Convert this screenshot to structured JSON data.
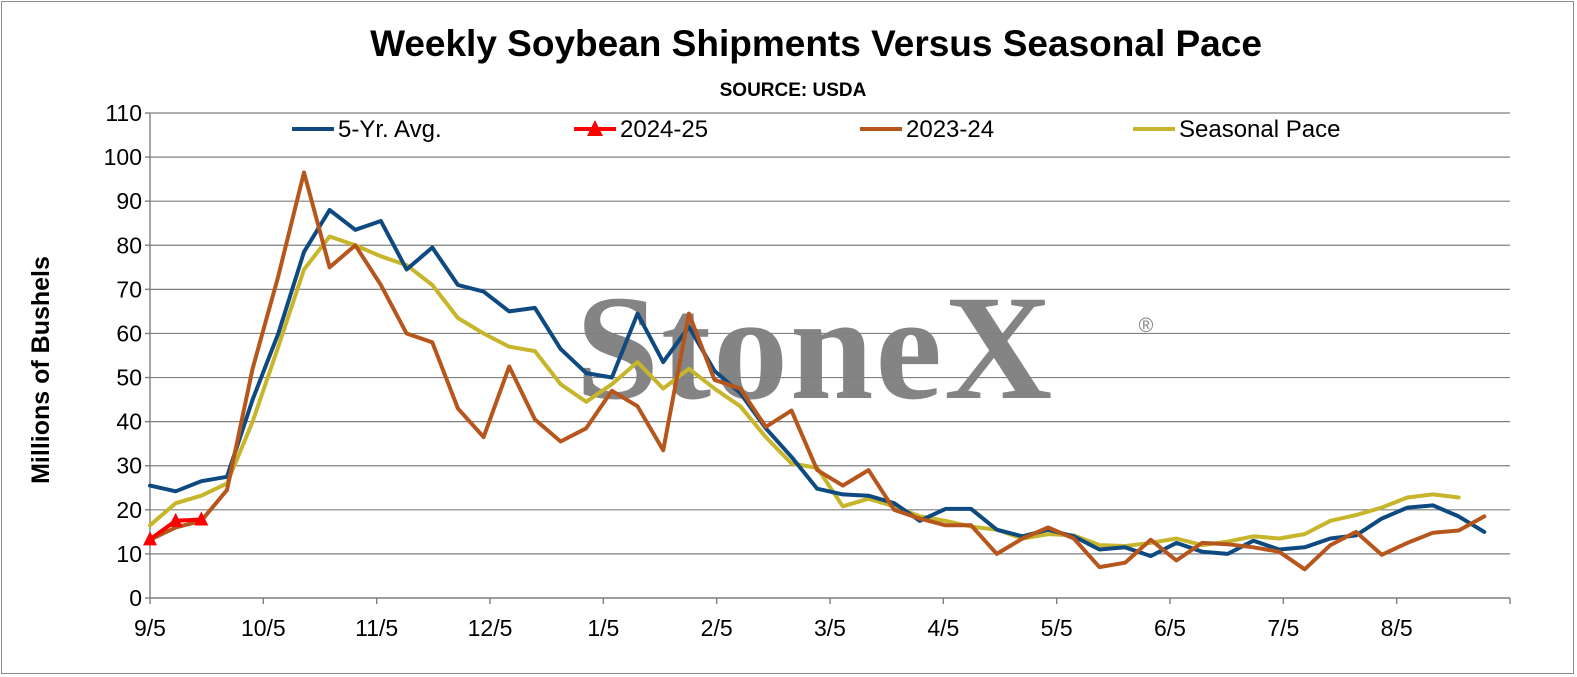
{
  "chart_data": {
    "type": "line",
    "title": "Weekly Soybean Shipments Versus Seasonal Pace",
    "subtitle": "SOURCE: USDA",
    "ylabel": "Millions of Bushels",
    "xlabel": "",
    "ylim": [
      0,
      110
    ],
    "yticks": [
      0,
      10,
      20,
      30,
      40,
      50,
      60,
      70,
      80,
      90,
      100,
      110
    ],
    "x_tick_labels": [
      "9/5",
      "10/5",
      "11/5",
      "12/5",
      "1/5",
      "2/5",
      "3/5",
      "4/5",
      "5/5",
      "6/5",
      "7/5",
      "8/5"
    ],
    "grid": true,
    "legend_position": "top",
    "watermark": "StoneX",
    "watermark_mark": "®",
    "series": [
      {
        "name": "5-Yr. Avg.",
        "color": "#0e4a80",
        "marker": "none",
        "values": [
          25.5,
          24.2,
          26.5,
          27.5,
          45,
          60,
          78.5,
          88,
          83.5,
          85.5,
          74.5,
          79.5,
          71,
          69.5,
          65,
          65.8,
          56.5,
          51,
          50,
          64.5,
          53.5,
          61.5,
          51.5,
          46.5,
          38.5,
          32,
          24.8,
          23.5,
          23.2,
          21.5,
          17.5,
          20.2,
          20.2,
          15.5,
          14,
          15.5,
          14,
          11,
          11.5,
          9.5,
          12.5,
          10.5,
          10,
          13,
          11,
          11.5,
          13.5,
          14.2,
          18,
          20.5,
          21,
          18.5,
          15
        ]
      },
      {
        "name": "2024-25",
        "color": "#ff0000",
        "marker": "triangle",
        "values": [
          13.3,
          17.5,
          17.8
        ]
      },
      {
        "name": "2023-24",
        "color": "#b7561c",
        "marker": "none",
        "values": [
          13.2,
          16,
          17.5,
          24.5,
          52,
          73,
          96.5,
          75,
          80,
          71,
          60,
          58,
          43,
          36.5,
          52.5,
          40.5,
          35.5,
          38.5,
          47,
          43.5,
          33.5,
          64.5,
          49.5,
          47.5,
          38.8,
          42.5,
          29,
          25.5,
          29,
          20,
          18,
          16.5,
          16.5,
          10,
          13.5,
          16,
          13.5,
          7,
          8,
          13.2,
          8.5,
          12.5,
          12.2,
          11.5,
          10.5,
          6.5,
          12,
          15,
          9.8,
          12.5,
          14.8,
          15.3,
          18.5
        ]
      },
      {
        "name": "Seasonal Pace",
        "color": "#c7b52b",
        "marker": "none",
        "values": [
          16.5,
          21.5,
          23.2,
          26,
          40,
          57,
          74.5,
          82,
          80,
          77.5,
          75.5,
          71,
          63.5,
          60,
          57,
          56,
          48.5,
          44.5,
          48.5,
          53.5,
          47.5,
          52,
          47.5,
          43.5,
          36.5,
          30.5,
          29.5,
          20.8,
          22.5,
          20.8,
          18.5,
          17.5,
          16.2,
          15.5,
          13.5,
          14.5,
          14.2,
          12,
          11.8,
          12.5,
          13.5,
          12,
          12.8,
          14,
          13.5,
          14.5,
          17.5,
          18.8,
          20.5,
          22.8,
          23.5,
          22.8
        ]
      }
    ]
  }
}
